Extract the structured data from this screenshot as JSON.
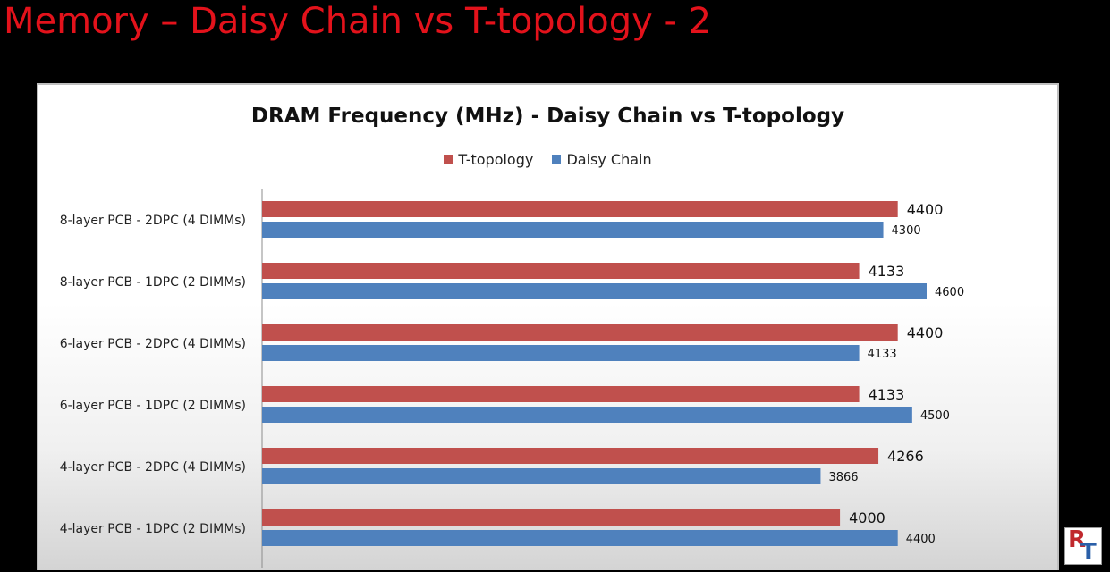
{
  "slide": {
    "title": "Memory – Daisy Chain vs T-topology - 2"
  },
  "logo": {
    "letter_1": "R",
    "letter_2": "T"
  },
  "chart_data": {
    "type": "bar",
    "orientation": "horizontal",
    "title": "DRAM Frequency (MHz) - Daisy Chain vs T-topology",
    "xlabel": "",
    "ylabel": "",
    "legend_position": "top",
    "grid": false,
    "xlim": [
      0,
      4800
    ],
    "categories": [
      "8-layer PCB - 2DPC (4 DIMMs)",
      "8-layer PCB - 1DPC (2 DIMMs)",
      "6-layer PCB - 2DPC (4 DIMMs)",
      "6-layer PCB - 1DPC (2 DIMMs)",
      "4-layer PCB - 2DPC (4 DIMMs)",
      "4-layer PCB - 1DPC (2 DIMMs)"
    ],
    "series": [
      {
        "name": "T-topology",
        "color": "#c0504d",
        "values": [
          4400,
          4133,
          4400,
          4133,
          4266,
          4000
        ]
      },
      {
        "name": "Daisy Chain",
        "color": "#4f81bd",
        "values": [
          4300,
          4600,
          4133,
          4500,
          3866,
          4400
        ]
      }
    ]
  }
}
